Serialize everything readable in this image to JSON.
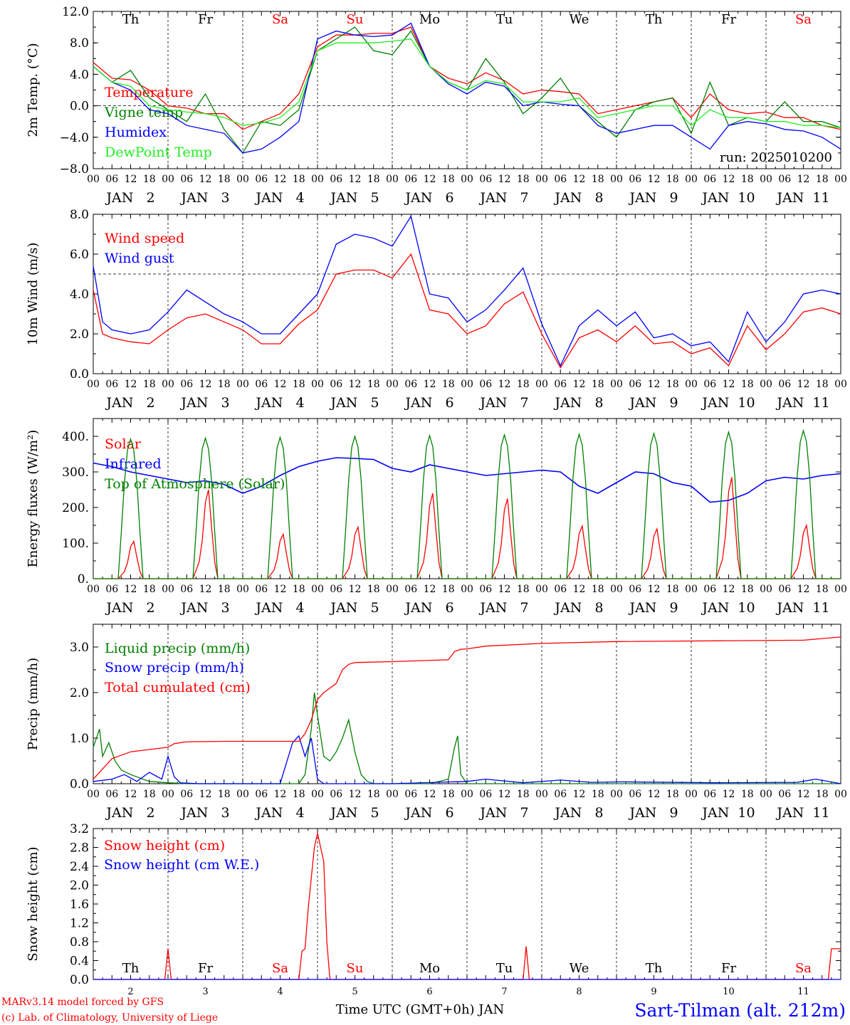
{
  "days": [
    "Th",
    "Fr",
    "Sa",
    "Su",
    "Mo",
    "Tu",
    "We",
    "Th",
    "Fr",
    "Sa"
  ],
  "weekend_days": [
    2,
    3,
    9
  ],
  "dates": [
    "JAN   2",
    "JAN   3",
    "JAN   4",
    "JAN   5",
    "JAN   6",
    "JAN   7",
    "JAN   8",
    "JAN   9",
    "JAN  10",
    "JAN  11"
  ],
  "hour_labels": [
    "00",
    "06",
    "12",
    "18"
  ],
  "final_hour_label": "00",
  "bottom_day_numbers": [
    "2",
    "3",
    "4",
    "5",
    "6",
    "7",
    "8",
    "9",
    "10",
    "11"
  ],
  "bottom_xlabel": "Time UTC (GMT+0h) JAN",
  "footer": {
    "model": "MARv3.14 model forced by GFS",
    "credit": "(c) Lab. of Climatology, University of Liege",
    "station": "Sart-Tilman (alt. 212m)"
  },
  "colors": {
    "red": "#ff0000",
    "green": "#008000",
    "blue": "#0000ff",
    "lightgreen": "#22ee22",
    "text": "#000000"
  },
  "chart_data": [
    {
      "id": "temp",
      "type": "line",
      "ylabel": "2m Temp. (°C)",
      "ylim": [
        -8,
        12
      ],
      "yticks": [
        -8,
        -4,
        0,
        4,
        8,
        12
      ],
      "ytick_labels": [
        "−8.0",
        "−4.0",
        "0.0",
        "4.0",
        "8.0",
        "12.0"
      ],
      "ref_line": 0,
      "annotation": "run: 2025010200",
      "x_unit": "hours since JAN 2 00 UTC",
      "series": [
        {
          "name": "Temperature",
          "color": "red",
          "x": [
            0,
            6,
            12,
            18,
            24,
            30,
            36,
            42,
            48,
            54,
            60,
            66,
            72,
            78,
            84,
            90,
            96,
            102,
            108,
            114,
            120,
            126,
            132,
            138,
            144,
            150,
            156,
            162,
            168,
            174,
            180,
            186,
            192,
            198,
            204,
            210,
            216,
            222,
            228,
            234,
            240
          ],
          "y": [
            5.5,
            3.5,
            3.3,
            2,
            0,
            -0.3,
            -1,
            -1,
            -3,
            -2,
            -1,
            1.5,
            7.5,
            9,
            9,
            9.2,
            9.2,
            10,
            5,
            3.5,
            2.8,
            4.2,
            3.2,
            1.5,
            2,
            1.8,
            1.5,
            -1,
            -0.5,
            0,
            0.5,
            1,
            -1.5,
            1.5,
            -0.5,
            -1,
            -0.8,
            -1.5,
            -1.5,
            -2.5,
            -3
          ]
        },
        {
          "name": "Vigne temp",
          "color": "green",
          "x": [
            0,
            6,
            12,
            18,
            24,
            30,
            36,
            42,
            48,
            54,
            60,
            66,
            72,
            78,
            84,
            90,
            96,
            102,
            108,
            114,
            120,
            126,
            132,
            138,
            144,
            150,
            156,
            162,
            168,
            174,
            180,
            186,
            192,
            198,
            204,
            210,
            216,
            222,
            228,
            234,
            240
          ],
          "y": [
            5,
            3,
            4.5,
            1,
            -0.5,
            -2,
            1.5,
            -3,
            -6,
            -2,
            -2.5,
            -0.5,
            7,
            8.5,
            10,
            7,
            6.5,
            9.5,
            5,
            3,
            2,
            6,
            3,
            -1,
            1,
            3.5,
            0,
            -2,
            -4,
            -0.5,
            0.5,
            1,
            -3.5,
            3,
            -2.5,
            -1.5,
            -2,
            0.5,
            -2,
            -2,
            -2.8
          ]
        },
        {
          "name": "Humidex",
          "color": "blue",
          "x": [
            0,
            6,
            12,
            18,
            24,
            30,
            36,
            42,
            48,
            54,
            60,
            66,
            72,
            78,
            84,
            90,
            96,
            102,
            108,
            114,
            120,
            126,
            132,
            138,
            144,
            150,
            156,
            162,
            168,
            174,
            180,
            186,
            192,
            198,
            204,
            210,
            216,
            222,
            228,
            234,
            240
          ],
          "y": [
            5,
            3,
            2,
            -0.5,
            -1,
            -2.5,
            -3,
            -3.5,
            -6,
            -5.5,
            -4,
            -2,
            8.5,
            9.5,
            9,
            8.8,
            9,
            10.5,
            5,
            2.8,
            1.5,
            3,
            2.5,
            0,
            0.5,
            0.2,
            0,
            -2.5,
            -3.5,
            -3,
            -2.5,
            -2.5,
            -4,
            -5.5,
            -2.5,
            -2,
            -2.3,
            -3,
            -3.2,
            -4,
            -5.5
          ]
        },
        {
          "name": "DewPoint Temp",
          "color": "lightgreen",
          "x": [
            0,
            6,
            12,
            18,
            24,
            30,
            36,
            42,
            48,
            54,
            60,
            66,
            72,
            78,
            84,
            90,
            96,
            102,
            108,
            114,
            120,
            126,
            132,
            138,
            144,
            150,
            156,
            162,
            168,
            174,
            180,
            186,
            192,
            198,
            204,
            210,
            216,
            222,
            228,
            234,
            240
          ],
          "y": [
            5,
            3,
            2.5,
            0,
            -0.5,
            -0.8,
            -1,
            -1.5,
            -2.5,
            -2.2,
            -1.5,
            0.5,
            7,
            8,
            8,
            8,
            8.2,
            8.5,
            5,
            3,
            2,
            3.2,
            2.8,
            0.5,
            0.5,
            0.5,
            1,
            -1.5,
            -1,
            -0.5,
            0,
            0,
            -2.5,
            -0.5,
            -1.5,
            -1.5,
            -2,
            -2,
            -2.5,
            -2.5,
            -2.8
          ]
        }
      ]
    },
    {
      "id": "wind",
      "type": "line",
      "ylabel": "10m Wind (m/s)",
      "ylim": [
        0,
        8
      ],
      "yticks": [
        0,
        2,
        4,
        6,
        8
      ],
      "ytick_labels": [
        "0.0",
        "2.0",
        "4.0",
        "6.0",
        "8.0"
      ],
      "ref_line": 5,
      "x_unit": "hours since JAN 2 00 UTC",
      "series": [
        {
          "name": "Wind speed",
          "color": "red",
          "x": [
            0,
            3,
            6,
            12,
            18,
            24,
            30,
            36,
            42,
            48,
            54,
            60,
            66,
            72,
            78,
            84,
            90,
            96,
            102,
            108,
            114,
            120,
            126,
            132,
            138,
            144,
            150,
            156,
            162,
            168,
            174,
            180,
            186,
            192,
            198,
            204,
            210,
            216,
            222,
            228,
            234,
            240
          ],
          "y": [
            4.2,
            2,
            1.8,
            1.6,
            1.5,
            2.2,
            2.8,
            3,
            2.6,
            2.2,
            1.5,
            1.5,
            2.5,
            3.2,
            5,
            5.2,
            5.2,
            4.8,
            6,
            3.2,
            3,
            2,
            2.4,
            3.5,
            4.1,
            2,
            0.3,
            1.8,
            2.2,
            1.6,
            2.4,
            1.5,
            1.6,
            1,
            1.3,
            0.4,
            2.4,
            1.2,
            2,
            3.1,
            3.3,
            3
          ]
        },
        {
          "name": "Wind gust",
          "color": "blue",
          "x": [
            0,
            3,
            6,
            12,
            18,
            24,
            30,
            36,
            42,
            48,
            54,
            60,
            66,
            72,
            78,
            84,
            90,
            96,
            102,
            108,
            114,
            120,
            126,
            132,
            138,
            144,
            150,
            156,
            162,
            168,
            174,
            180,
            186,
            192,
            198,
            204,
            210,
            216,
            222,
            228,
            234,
            240
          ],
          "y": [
            5.4,
            2.6,
            2.2,
            2,
            2.2,
            3.1,
            4.2,
            3.6,
            3,
            2.6,
            2,
            2,
            3,
            4,
            6.5,
            7,
            6.8,
            6.4,
            7.9,
            4,
            3.8,
            2.6,
            3.2,
            4.2,
            5.3,
            2.5,
            0.4,
            2.4,
            3.2,
            2.4,
            3.1,
            1.8,
            2,
            1.4,
            1.6,
            0.6,
            3.1,
            1.6,
            2.6,
            4,
            4.2,
            4
          ]
        }
      ]
    },
    {
      "id": "energy",
      "type": "line",
      "ylabel": "Energy fluxes (W/m²)",
      "ylim": [
        0,
        450
      ],
      "yticks": [
        0,
        100,
        200,
        300,
        400
      ],
      "ytick_labels": [
        "0.",
        "100.",
        "200.",
        "300.",
        "400."
      ],
      "x_unit": "hours since JAN 2 00 UTC",
      "series": [
        {
          "name": "Solar",
          "color": "red",
          "peaks": [
            105,
            250,
            125,
            145,
            240,
            225,
            148,
            140,
            285,
            150
          ],
          "peak_shape": [
            [
              8,
              0
            ],
            [
              10,
              20
            ],
            [
              11,
              45
            ],
            [
              12,
              90
            ],
            [
              13,
              105
            ],
            [
              14,
              60
            ],
            [
              15,
              20
            ],
            [
              16,
              0
            ]
          ]
        },
        {
          "name": "Infrared",
          "color": "blue",
          "x": [
            0,
            6,
            12,
            18,
            24,
            30,
            36,
            42,
            48,
            54,
            60,
            66,
            72,
            78,
            84,
            90,
            96,
            102,
            108,
            114,
            120,
            126,
            132,
            138,
            144,
            150,
            156,
            162,
            168,
            174,
            180,
            186,
            192,
            198,
            204,
            210,
            216,
            222,
            228,
            234,
            240
          ],
          "y": [
            325,
            315,
            300,
            290,
            280,
            270,
            275,
            265,
            240,
            260,
            290,
            315,
            330,
            340,
            338,
            335,
            310,
            300,
            320,
            310,
            300,
            290,
            295,
            300,
            305,
            300,
            260,
            240,
            270,
            300,
            295,
            270,
            260,
            215,
            220,
            240,
            275,
            285,
            280,
            290,
            295
          ]
        },
        {
          "name": "Top of Atmosphere (Solar)",
          "color": "green",
          "peaks": [
            392,
            395,
            397,
            400,
            402,
            404,
            406,
            408,
            412,
            416
          ],
          "peak_shape": [
            [
              8,
              0
            ],
            [
              9,
              130
            ],
            [
              10,
              270
            ],
            [
              11,
              360
            ],
            [
              12,
              390
            ],
            [
              13,
              360
            ],
            [
              14,
              270
            ],
            [
              15,
              130
            ],
            [
              16,
              0
            ]
          ]
        }
      ]
    },
    {
      "id": "precip",
      "type": "line",
      "ylabel": "Precip (mm/h)",
      "ylim": [
        0,
        3.5
      ],
      "yticks": [
        0,
        1,
        2,
        3
      ],
      "ytick_labels": [
        "0.0",
        "1.0",
        "2.0",
        "3.0"
      ],
      "x_unit": "hours since JAN 2 00 UTC",
      "series": [
        {
          "name": "Liquid precip (mm/h)",
          "color": "green",
          "x": [
            0,
            2,
            3,
            5,
            7,
            9,
            12,
            18,
            24,
            30,
            42,
            60,
            66,
            68,
            70,
            71,
            72,
            74,
            76,
            78,
            80,
            82,
            84,
            86,
            88,
            90,
            96,
            108,
            114,
            116,
            117,
            118,
            120,
            126,
            240
          ],
          "y": [
            0.8,
            1.2,
            0.6,
            0.9,
            0.5,
            0.3,
            0.2,
            0.05,
            0.02,
            0,
            0,
            0,
            0,
            0.2,
            1.2,
            2.0,
            1.5,
            0.6,
            0.5,
            0.7,
            1.0,
            1.4,
            0.7,
            0.2,
            0.05,
            0,
            0,
            0,
            0.1,
            0.8,
            1.05,
            0.2,
            0,
            0,
            0
          ]
        },
        {
          "name": "Snow precip (mm/h)",
          "color": "blue",
          "x": [
            0,
            6,
            10,
            14,
            18,
            22,
            24,
            26,
            28,
            34,
            60,
            64,
            66,
            68,
            70,
            72,
            74,
            78,
            96,
            120,
            126,
            138,
            150,
            160,
            170,
            200,
            226,
            232,
            240
          ],
          "y": [
            0.05,
            0.1,
            0.2,
            0.05,
            0.25,
            0.1,
            0.6,
            0.15,
            0.02,
            0,
            0,
            0.9,
            1.05,
            0.6,
            1.0,
            0.1,
            0,
            0,
            0,
            0.05,
            0.1,
            0.02,
            0.08,
            0.03,
            0.04,
            0.02,
            0.03,
            0.1,
            0
          ]
        },
        {
          "name": "Total cumulated (cm)",
          "color": "red",
          "x": [
            0,
            6,
            12,
            18,
            24,
            26,
            30,
            42,
            66,
            68,
            70,
            72,
            74,
            78,
            80,
            82,
            84,
            96,
            114,
            116,
            118,
            120,
            126,
            144,
            168,
            228,
            240
          ],
          "y": [
            0.1,
            0.55,
            0.7,
            0.75,
            0.8,
            0.88,
            0.92,
            0.93,
            0.93,
            1.1,
            1.4,
            1.85,
            2.0,
            2.2,
            2.5,
            2.62,
            2.66,
            2.68,
            2.72,
            2.9,
            2.95,
            2.96,
            3.02,
            3.08,
            3.12,
            3.15,
            3.22
          ]
        }
      ]
    },
    {
      "id": "snow",
      "type": "line",
      "ylabel": "Snow height (cm)",
      "ylim": [
        0,
        3.2
      ],
      "yticks": [
        0,
        0.4,
        0.8,
        1.2,
        1.6,
        2.0,
        2.4,
        2.8,
        3.2
      ],
      "ytick_labels": [
        "0.0",
        "0.4",
        "0.8",
        "1.2",
        "1.6",
        "2.0",
        "2.4",
        "2.8",
        "3.2"
      ],
      "x_unit": "hours since JAN 2 00 UTC",
      "series": [
        {
          "name": "Snow height (cm)",
          "color": "red",
          "x": [
            0,
            23,
            24,
            25,
            66,
            67,
            68,
            69,
            71,
            72,
            74,
            75,
            76,
            138,
            139,
            140,
            236,
            237,
            240
          ],
          "y": [
            0,
            0,
            0.65,
            0,
            0,
            0.6,
            0.65,
            1.5,
            2.8,
            3.1,
            2.5,
            0.8,
            0,
            0,
            0.7,
            0,
            0,
            0.65,
            0.65
          ]
        },
        {
          "name": "Snow height (cm W.E.)",
          "color": "blue",
          "x": [
            0,
            240
          ],
          "y": [
            0,
            0
          ]
        }
      ]
    }
  ]
}
